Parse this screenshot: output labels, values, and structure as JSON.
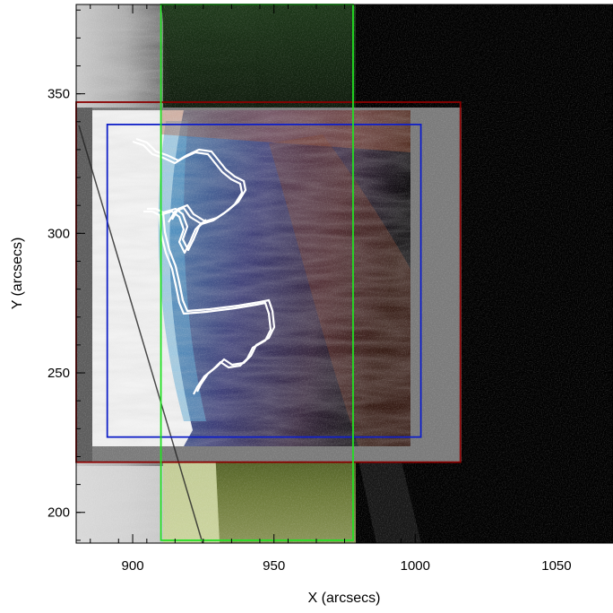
{
  "figure": {
    "x_axis": {
      "title": "X (arcsecs)",
      "ticks": [
        {
          "label": "900",
          "value": 900
        },
        {
          "label": "950",
          "value": 950
        },
        {
          "label": "1000",
          "value": 1000
        },
        {
          "label": "1050",
          "value": 1050
        }
      ],
      "range": [
        880,
        1070
      ]
    },
    "y_axis": {
      "title": "Y (arcsecs)",
      "ticks": [
        {
          "label": "200",
          "value": 200
        },
        {
          "label": "250",
          "value": 250
        },
        {
          "label": "300",
          "value": 300
        },
        {
          "label": "350",
          "value": 350
        }
      ],
      "range": [
        189,
        382
      ]
    },
    "boxes": [
      {
        "name": "red-box",
        "color": "#8b0000",
        "x": [
          880,
          1016
        ],
        "y": [
          218,
          347
        ]
      },
      {
        "name": "blue-box",
        "color": "#1020c8",
        "x": [
          891,
          1002
        ],
        "y": [
          227,
          339
        ]
      },
      {
        "name": "green-box",
        "color": "#22e022",
        "x": [
          910,
          978
        ],
        "y": [
          190,
          382
        ]
      }
    ],
    "contour_color": "#ffffff"
  }
}
